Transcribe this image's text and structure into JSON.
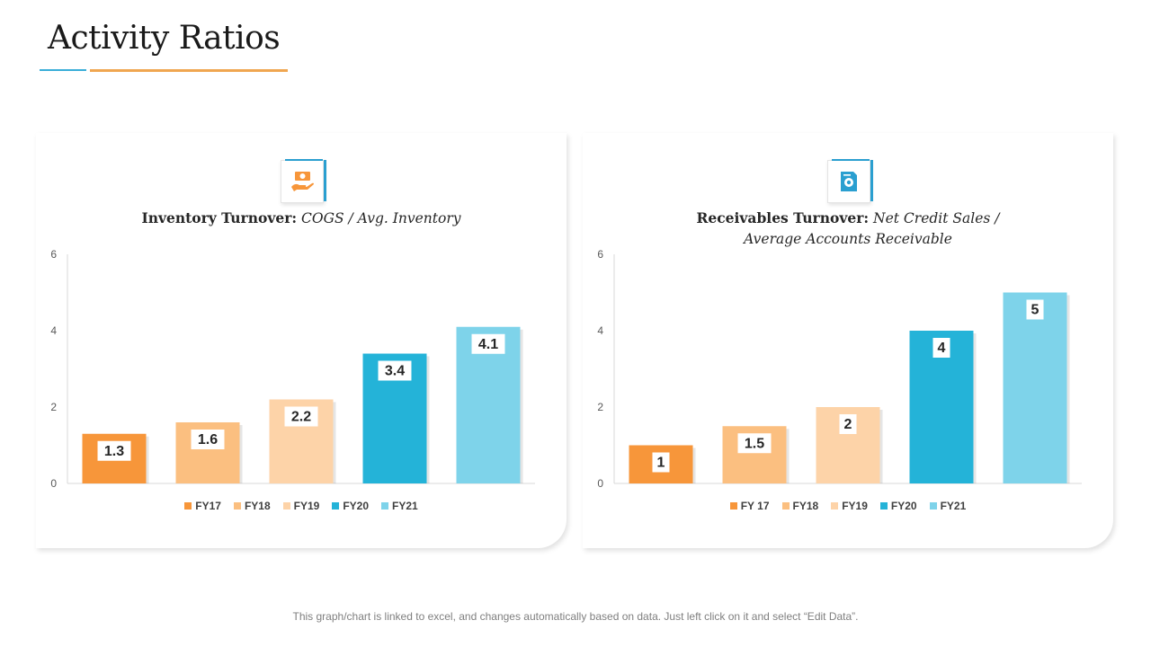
{
  "page": {
    "title": "Activity Ratios",
    "footnote": "This graph/chart is linked to excel, and changes automatically based on data. Just left click on it and select “Edit Data”."
  },
  "colors": [
    "#f7963a",
    "#fbbf80",
    "#fdd3a8",
    "#24b3d8",
    "#7ed3ea"
  ],
  "chart_data": [
    {
      "type": "bar",
      "title_bold": "Inventory Turnover:",
      "title_formula": "COGS / Avg. Inventory",
      "icon": "money-hand-icon",
      "categories": [
        "FY17",
        "FY18",
        "FY19",
        "FY20",
        "FY21"
      ],
      "values": [
        1.3,
        1.6,
        2.2,
        3.4,
        4.1
      ],
      "data_labels": [
        "1.3",
        "1.6",
        "2.2",
        "3.4",
        "4.1"
      ],
      "ylim": [
        0,
        6
      ],
      "yticks": [
        0,
        2,
        4,
        6
      ],
      "legend": [
        "FY17",
        "FY18",
        "FY19",
        "FY20",
        "FY21"
      ],
      "legend_position": "bottom"
    },
    {
      "type": "bar",
      "title_bold": "Receivables Turnover:",
      "title_formula": "Net Credit Sales / Average Accounts Receivable",
      "icon": "document-gear-icon",
      "categories": [
        "FY 17",
        "FY18",
        "FY19",
        "FY20",
        "FY21"
      ],
      "values": [
        1,
        1.5,
        2,
        4,
        5
      ],
      "data_labels": [
        "1",
        "1.5",
        "2",
        "4",
        "5"
      ],
      "ylim": [
        0,
        6
      ],
      "yticks": [
        0,
        2,
        4,
        6
      ],
      "legend": [
        "FY 17",
        "FY18",
        "FY19",
        "FY20",
        "FY21"
      ],
      "legend_position": "bottom"
    }
  ]
}
